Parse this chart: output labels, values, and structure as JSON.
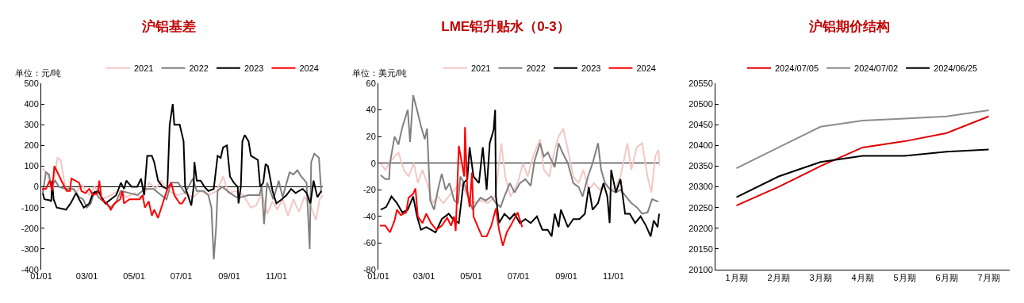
{
  "chart_data": [
    {
      "type": "line",
      "title": "沪铝基差",
      "annotations": [
        "单位：元/吨"
      ],
      "legend": "top",
      "xlim": [
        "--01-01",
        "--12-31"
      ],
      "xticks": [
        {
          "value": "--01-01",
          "label": "01/01"
        },
        {
          "value": "--03-01",
          "label": "03/01"
        },
        {
          "value": "--05-01",
          "label": "05/01"
        },
        {
          "value": "--07-01",
          "label": "07/01"
        },
        {
          "value": "--09-01",
          "label": "09/01"
        },
        {
          "value": "--11-01",
          "label": "11/01"
        }
      ],
      "ylim": [
        -400,
        500
      ],
      "yticks": [
        -400,
        -300,
        -200,
        -100,
        0,
        100,
        200,
        300,
        400,
        500
      ],
      "series": [
        {
          "name": "2021",
          "color": "#f4c7c3",
          "x": [
            "--01-03",
            "--01-09",
            "--01-15",
            "--01-22",
            "--01-26",
            "--02-02",
            "--02-08",
            "--02-15",
            "--02-22",
            "--03-04",
            "--03-11",
            "--03-21",
            "--04-01",
            "--04-11",
            "--04-21",
            "--05-02",
            "--05-12",
            "--05-20",
            "--05-29",
            "--06-05",
            "--06-15",
            "--06-25",
            "--07-06",
            "--07-16",
            "--07-26",
            "--08-05",
            "--08-16",
            "--08-24",
            "--08-31",
            "--09-09",
            "--09-19",
            "--09-29",
            "--10-06",
            "--10-13",
            "--10-20",
            "--10-27",
            "--11-02",
            "--11-09",
            "--11-16",
            "--11-23",
            "--11-30",
            "--12-07",
            "--12-14",
            "--12-22",
            "--12-27",
            "--12-31"
          ],
          "values": [
            90,
            60,
            -20,
            140,
            130,
            -20,
            0,
            -30,
            10,
            -40,
            0,
            -60,
            -40,
            -20,
            -50,
            -30,
            -60,
            20,
            -10,
            30,
            -20,
            -40,
            -30,
            -50,
            -20,
            -40,
            -20,
            50,
            -30,
            -20,
            -40,
            -100,
            -90,
            -30,
            -130,
            -70,
            -110,
            -60,
            -140,
            -60,
            -120,
            -50,
            -80,
            -160,
            -60,
            -40
          ]
        },
        {
          "name": "2022",
          "color": "#808080",
          "x": [
            "--01-03",
            "--01-07",
            "--01-11",
            "--01-14",
            "--01-19",
            "--01-24",
            "--02-02",
            "--02-12",
            "--02-19",
            "--02-24",
            "--03-01",
            "--03-06",
            "--03-11",
            "--03-16",
            "--03-25",
            "--04-01",
            "--04-08",
            "--04-14",
            "--04-25",
            "--05-05",
            "--05-15",
            "--05-26",
            "--06-05",
            "--06-12",
            "--06-18",
            "--06-27",
            "--07-06",
            "--07-16",
            "--07-21",
            "--07-30",
            "--08-05",
            "--08-09",
            "--08-12",
            "--08-15",
            "--08-17",
            "--08-23",
            "--09-02",
            "--09-10",
            "--09-16",
            "--09-26",
            "--10-10",
            "--10-13",
            "--10-16",
            "--10-20",
            "--10-28",
            "--11-04",
            "--11-09",
            "--11-18",
            "--11-23",
            "--11-28",
            "--12-03",
            "--12-10",
            "--12-14",
            "--12-16",
            "--12-20",
            "--12-26",
            "--12-29"
          ],
          "values": [
            -30,
            70,
            60,
            0,
            30,
            0,
            -10,
            -10,
            -50,
            -60,
            -100,
            -80,
            -20,
            -50,
            -80,
            -100,
            -70,
            -20,
            -30,
            -40,
            -10,
            -10,
            -40,
            -60,
            20,
            20,
            -30,
            40,
            -20,
            -20,
            -40,
            -100,
            -350,
            -200,
            -20,
            0,
            -30,
            -50,
            -50,
            -40,
            -40,
            0,
            -180,
            20,
            -60,
            30,
            -50,
            70,
            60,
            80,
            50,
            20,
            -300,
            120,
            160,
            140,
            -30
          ]
        },
        {
          "name": "2023",
          "color": "#000000",
          "x": [
            "--01-03",
            "--01-05",
            "--01-12",
            "--01-14",
            "--01-15",
            "--01-17",
            "--01-21",
            "--02-02",
            "--02-08",
            "--02-15",
            "--02-19",
            "--02-25",
            "--03-04",
            "--03-09",
            "--03-16",
            "--03-20",
            "--03-25",
            "--04-01",
            "--04-08",
            "--04-14",
            "--04-18",
            "--04-21",
            "--04-28",
            "--05-05",
            "--05-10",
            "--05-14",
            "--05-18",
            "--05-24",
            "--05-27",
            "--06-01",
            "--06-07",
            "--06-13",
            "--06-16",
            "--06-20",
            "--06-22",
            "--06-29",
            "--07-04",
            "--07-06",
            "--07-14",
            "--07-17",
            "--07-18",
            "--07-21",
            "--07-26",
            "--07-31",
            "--08-05",
            "--08-12",
            "--08-17",
            "--08-21",
            "--08-24",
            "--08-29",
            "--09-02",
            "--09-07",
            "--09-12",
            "--09-13",
            "--09-16",
            "--09-18",
            "--09-21",
            "--09-26",
            "--09-29",
            "--10-08",
            "--10-11",
            "--10-15",
            "--10-18",
            "--10-21",
            "--10-27",
            "--11-01",
            "--11-08",
            "--11-14",
            "--11-20",
            "--11-26",
            "--11-30",
            "--12-05",
            "--12-10",
            "--12-15",
            "--12-19",
            "--12-24",
            "--12-29"
          ],
          "values": [
            -30,
            -60,
            -65,
            -70,
            30,
            -60,
            -100,
            -110,
            -80,
            -30,
            -60,
            -100,
            -80,
            -30,
            -20,
            -50,
            -80,
            -60,
            -40,
            20,
            -10,
            30,
            0,
            0,
            40,
            -40,
            150,
            150,
            120,
            30,
            0,
            -10,
            300,
            400,
            300,
            300,
            220,
            0,
            -90,
            0,
            120,
            30,
            30,
            0,
            -20,
            -10,
            150,
            140,
            190,
            200,
            50,
            20,
            0,
            -80,
            0,
            220,
            250,
            220,
            150,
            130,
            0,
            20,
            110,
            100,
            -20,
            -80,
            -60,
            -40,
            -10,
            -30,
            -20,
            -10,
            -30,
            -80,
            30,
            -50,
            -20
          ]
        },
        {
          "name": "2024",
          "color": "#ff0000",
          "x": [
            "--01-02",
            "--01-07",
            "--01-12",
            "--01-15",
            "--01-18",
            "--01-22",
            "--01-27",
            "--02-03",
            "--02-07",
            "--02-09",
            "--02-19",
            "--02-22",
            "--02-27",
            "--03-04",
            "--03-09",
            "--03-15",
            "--03-17",
            "--03-20",
            "--03-27",
            "--04-01",
            "--04-06",
            "--04-13",
            "--04-16",
            "--04-18",
            "--04-25",
            "--05-08",
            "--05-12",
            "--05-15",
            "--05-20",
            "--05-24",
            "--05-27",
            "--06-01",
            "--06-07",
            "--06-13",
            "--06-18",
            "--06-22",
            "--06-29",
            "--07-02",
            "--07-07"
          ],
          "values": [
            -10,
            -10,
            30,
            -20,
            100,
            70,
            30,
            -20,
            -20,
            40,
            20,
            -20,
            -30,
            -10,
            -40,
            -30,
            30,
            -60,
            -80,
            -110,
            -80,
            -60,
            -20,
            -80,
            -60,
            -60,
            -40,
            -100,
            -70,
            -140,
            -110,
            -150,
            -80,
            -10,
            20,
            -40,
            -80,
            -80,
            -50
          ]
        }
      ]
    },
    {
      "type": "line",
      "title": "LME铝升贴水（0-3）",
      "annotations": [
        "单位：美元/吨"
      ],
      "legend": "top",
      "xlim": [
        "--01-01",
        "--12-31"
      ],
      "xticks": [
        {
          "value": "--01-01",
          "label": "01/01"
        },
        {
          "value": "--03-01",
          "label": "03/01"
        },
        {
          "value": "--05-01",
          "label": "05/01"
        },
        {
          "value": "--07-01",
          "label": "07/01"
        },
        {
          "value": "--09-01",
          "label": "09/01"
        },
        {
          "value": "--11-01",
          "label": "11/01"
        }
      ],
      "ylim": [
        -80,
        60
      ],
      "yticks": [
        -80,
        -60,
        -40,
        -20,
        0,
        20,
        40,
        60
      ],
      "series": [
        {
          "name": "2021",
          "color": "#f4c7c3",
          "x": [
            "--01-04",
            "--01-10",
            "--01-15",
            "--01-22",
            "--01-27",
            "--02-03",
            "--02-09",
            "--02-16",
            "--02-21",
            "--02-27",
            "--03-05",
            "--03-12",
            "--03-19",
            "--03-26",
            "--04-02",
            "--04-09",
            "--04-17",
            "--04-24",
            "--05-03",
            "--05-13",
            "--05-23",
            "--06-01",
            "--06-09",
            "--06-14",
            "--06-21",
            "--06-30",
            "--07-07",
            "--07-13",
            "--07-20",
            "--07-29",
            "--08-03",
            "--08-10",
            "--08-17",
            "--08-22",
            "--08-28",
            "--09-03",
            "--09-10",
            "--09-17",
            "--09-23",
            "--09-30",
            "--10-07",
            "--10-14",
            "--10-21",
            "--10-28",
            "--11-04",
            "--11-10",
            "--11-19",
            "--11-24",
            "--12-01",
            "--12-08",
            "--12-15",
            "--12-20",
            "--12-25",
            "--12-29",
            "--12-31"
          ],
          "values": [
            0,
            -5,
            0,
            5,
            8,
            -5,
            -10,
            0,
            -15,
            -5,
            -15,
            -30,
            -25,
            -30,
            -25,
            -20,
            -15,
            -22,
            -30,
            -28,
            -30,
            -25,
            15,
            -10,
            -25,
            -15,
            0,
            -10,
            5,
            18,
            -5,
            -10,
            10,
            20,
            26,
            10,
            -10,
            -15,
            -5,
            -20,
            -15,
            -20,
            -15,
            -20,
            -18,
            -10,
            15,
            -5,
            12,
            15,
            -10,
            -22,
            5,
            10,
            -2
          ]
        },
        {
          "name": "2022",
          "color": "#808080",
          "x": [
            "--01-04",
            "--01-10",
            "--01-15",
            "--01-16",
            "--01-22",
            "--01-27",
            "--02-01",
            "--02-08",
            "--02-11",
            "--02-15",
            "--02-20",
            "--02-25",
            "--03-02",
            "--03-05",
            "--03-09",
            "--03-14",
            "--03-19",
            "--03-24",
            "--03-29",
            "--04-03",
            "--04-09",
            "--04-14",
            "--04-17",
            "--04-22",
            "--04-27",
            "--05-03",
            "--05-08",
            "--05-13",
            "--05-20",
            "--05-27",
            "--06-02",
            "--06-08",
            "--06-13",
            "--06-20",
            "--06-26",
            "--07-03",
            "--07-10",
            "--07-17",
            "--07-22",
            "--07-29",
            "--08-03",
            "--08-08",
            "--08-17",
            "--08-22",
            "--08-27",
            "--09-03",
            "--09-10",
            "--09-17",
            "--09-22",
            "--09-29",
            "--10-05",
            "--10-12",
            "--10-16",
            "--10-21",
            "--10-28",
            "--11-04",
            "--11-10",
            "--11-17",
            "--11-24",
            "--12-01",
            "--12-08",
            "--12-15",
            "--12-21",
            "--12-29"
          ],
          "values": [
            -9,
            -12,
            -12,
            0,
            20,
            14,
            27,
            40,
            16,
            51,
            40,
            28,
            18,
            26,
            -28,
            -35,
            -20,
            -8,
            -20,
            -15,
            -28,
            -30,
            -10,
            -15,
            -25,
            -35,
            -30,
            -26,
            -28,
            -25,
            -30,
            -33,
            -25,
            -15,
            -22,
            -15,
            -12,
            -17,
            2,
            15,
            5,
            8,
            -3,
            15,
            8,
            0,
            -15,
            -18,
            -25,
            -10,
            0,
            15,
            -5,
            -15,
            -20,
            -22,
            -20,
            -25,
            -30,
            -33,
            -38,
            -37,
            -27,
            -29
          ]
        },
        {
          "name": "2023",
          "color": "#000000",
          "x": [
            "--01-04",
            "--01-11",
            "--01-18",
            "--01-25",
            "--02-01",
            "--02-08",
            "--02-15",
            "--02-20",
            "--02-25",
            "--03-04",
            "--03-10",
            "--03-16",
            "--03-24",
            "--04-02",
            "--04-09",
            "--04-15",
            "--04-21",
            "--04-26",
            "--04-29",
            "--05-04",
            "--05-11",
            "--05-16",
            "--05-21",
            "--05-25",
            "--05-30",
            "--06-01",
            "--06-02",
            "--06-06",
            "--06-13",
            "--06-20",
            "--06-26",
            "--07-03",
            "--07-10",
            "--07-17",
            "--07-25",
            "--08-01",
            "--08-08",
            "--08-13",
            "--08-17",
            "--08-22",
            "--08-25",
            "--09-03",
            "--09-10",
            "--09-18",
            "--09-25",
            "--09-30",
            "--10-05",
            "--10-12",
            "--10-19",
            "--10-24",
            "--10-27",
            "--10-29",
            "--11-04",
            "--11-10",
            "--11-16",
            "--11-22",
            "--11-29",
            "--12-06",
            "--12-13",
            "--12-19",
            "--12-23",
            "--12-28",
            "--12-30"
          ],
          "values": [
            -35,
            -33,
            -25,
            -30,
            -37,
            -35,
            -25,
            -40,
            -50,
            -48,
            -50,
            -52,
            -42,
            -38,
            -43,
            -45,
            -15,
            -12,
            12,
            -10,
            -15,
            12,
            -20,
            15,
            25,
            40,
            -25,
            -45,
            -38,
            -42,
            -38,
            -45,
            -42,
            -45,
            -40,
            -50,
            -50,
            -55,
            -38,
            -48,
            -35,
            -48,
            -42,
            -42,
            -38,
            -18,
            -35,
            -30,
            -15,
            -25,
            -45,
            -5,
            -22,
            -12,
            -38,
            -38,
            -45,
            -40,
            -47,
            -55,
            -43,
            -48,
            -38
          ]
        },
        {
          "name": "2024",
          "color": "#ff0000",
          "x": [
            "--01-03",
            "--01-10",
            "--01-16",
            "--01-22",
            "--01-25",
            "--01-30",
            "--02-06",
            "--02-09",
            "--02-15",
            "--02-18",
            "--02-21",
            "--02-27",
            "--03-04",
            "--03-10",
            "--03-17",
            "--03-24",
            "--03-31",
            "--04-05",
            "--04-09",
            "--04-11",
            "--04-15",
            "--04-19",
            "--04-22",
            "--04-23",
            "--04-26",
            "--04-29",
            "--05-02",
            "--05-04",
            "--05-09",
            "--05-15",
            "--05-21",
            "--05-27",
            "--06-02",
            "--06-06",
            "--06-11",
            "--06-16",
            "--06-21",
            "--06-30",
            "--07-06"
          ],
          "values": [
            -47,
            -47,
            -52,
            -43,
            -35,
            -39,
            -37,
            -26,
            -23,
            -19,
            -40,
            -45,
            -38,
            -45,
            -50,
            -47,
            -41,
            -47,
            -40,
            -51,
            13,
            0,
            -10,
            27,
            -20,
            -33,
            -7,
            -40,
            -47,
            -55,
            -55,
            -47,
            -34,
            -50,
            -62,
            -52,
            -47,
            -37,
            -48
          ]
        }
      ]
    },
    {
      "type": "line",
      "title": "沪铝期价结构",
      "legend": "top",
      "categories": [
        "1月期",
        "2月期",
        "3月期",
        "4月期",
        "5月期",
        "6月期",
        "7月期"
      ],
      "ylim": [
        20100,
        20550
      ],
      "yticks": [
        20100,
        20150,
        20200,
        20250,
        20300,
        20350,
        20400,
        20450,
        20500,
        20550
      ],
      "series": [
        {
          "name": "2024/07/05",
          "color": "#e00000",
          "values": [
            20255,
            20300,
            20350,
            20395,
            20410,
            20430,
            20470
          ]
        },
        {
          "name": "2024/07/02",
          "color": "#8c8c8c",
          "values": [
            20345,
            20395,
            20445,
            20460,
            20465,
            20470,
            20485
          ]
        },
        {
          "name": "2024/06/25",
          "color": "#000000",
          "values": [
            20275,
            20325,
            20360,
            20375,
            20375,
            20385,
            20390
          ]
        }
      ]
    }
  ]
}
